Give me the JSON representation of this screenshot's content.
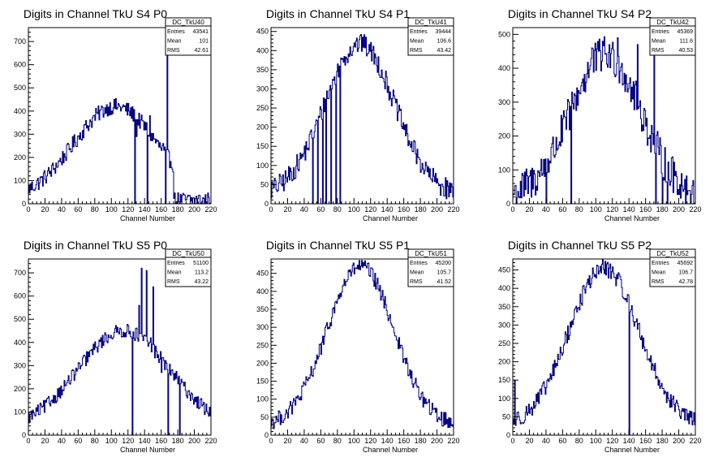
{
  "chart_data": [
    {
      "type": "histogram",
      "title": "Digits in Channel TkU S4 P0",
      "xlabel": "Channel Number",
      "xlim": [
        0,
        220
      ],
      "ylim": [
        0,
        760
      ],
      "yticks": [
        100,
        200,
        300,
        400,
        500,
        600,
        700
      ],
      "stats": {
        "name": "DC_TkU40",
        "rows": [
          [
            "Entries",
            "43541"
          ],
          [
            "Mean",
            "101"
          ],
          [
            "RMS",
            "42.61"
          ]
        ]
      },
      "shape": {
        "amp": 400,
        "center": 105,
        "sigma": 50,
        "floor": 20,
        "cut": 175,
        "noise": 35
      },
      "spikes": [
        [
          167,
          710
        ],
        [
          146,
          380
        ],
        [
          162,
          260
        ],
        [
          130,
          290
        ]
      ],
      "dips": [
        128,
        143,
        165
      ]
    },
    {
      "type": "histogram",
      "title": "Digits in Channel TkU S4 P1",
      "xlabel": "Channel Number",
      "xlim": [
        0,
        220
      ],
      "ylim": [
        0,
        460
      ],
      "yticks": [
        50,
        100,
        150,
        200,
        250,
        300,
        350,
        400,
        450
      ],
      "stats": {
        "name": "DC_TkU41",
        "rows": [
          [
            "Entries",
            "39444"
          ],
          [
            "Mean",
            "106.6"
          ],
          [
            "RMS",
            "43.42"
          ]
        ]
      },
      "shape": {
        "amp": 395,
        "center": 107,
        "sigma": 42,
        "floor": 22,
        "cut": 220,
        "noise": 28
      },
      "spikes": [
        [
          110,
          435
        ],
        [
          100,
          420
        ],
        [
          95,
          410
        ]
      ],
      "dips": [
        50,
        56,
        62,
        66,
        72,
        78,
        83
      ]
    },
    {
      "type": "histogram",
      "title": "Digits in Channel TkU S4 P2",
      "xlabel": "Channel Number",
      "xlim": [
        0,
        220
      ],
      "ylim": [
        0,
        520
      ],
      "yticks": [
        100,
        200,
        300,
        400,
        500
      ],
      "stats": {
        "name": "DC_TkU42",
        "rows": [
          [
            "Entries",
            "45369"
          ],
          [
            "Mean",
            "111.6"
          ],
          [
            "RMS",
            "40.53"
          ]
        ]
      },
      "shape": {
        "amp": 420,
        "center": 112,
        "sigma": 42,
        "floor": 20,
        "cut": 215,
        "noise": 55
      },
      "spikes": [
        [
          126,
          490
        ],
        [
          108,
          480
        ],
        [
          150,
          470
        ],
        [
          95,
          460
        ],
        [
          170,
          440
        ],
        [
          176,
          145
        ]
      ],
      "dips": [
        40,
        70,
        172,
        180,
        186
      ]
    },
    {
      "type": "histogram",
      "title": "Digits in Channel TkU S5 P0",
      "xlabel": "Channel Number",
      "xlim": [
        0,
        220
      ],
      "ylim": [
        0,
        760
      ],
      "yticks": [
        100,
        200,
        300,
        400,
        500,
        600,
        700
      ],
      "stats": {
        "name": "DC_TkU50",
        "rows": [
          [
            "Entries",
            "51100"
          ],
          [
            "Mean",
            "113.2"
          ],
          [
            "RMS",
            "43.22"
          ]
        ]
      },
      "shape": {
        "amp": 420,
        "center": 115,
        "sigma": 55,
        "floor": 30,
        "cut": 220,
        "noise": 30
      },
      "spikes": [
        [
          136,
          720
        ],
        [
          142,
          710
        ],
        [
          150,
          640
        ],
        [
          133,
          560
        ],
        [
          147,
          420
        ],
        [
          160,
          270
        ]
      ],
      "dips": [
        125,
        168,
        182
      ]
    },
    {
      "type": "histogram",
      "title": "Digits in Channel TkU S5 P1",
      "xlabel": "Channel Number",
      "xlim": [
        0,
        220
      ],
      "ylim": [
        0,
        490
      ],
      "yticks": [
        50,
        100,
        150,
        200,
        250,
        300,
        350,
        400,
        450
      ],
      "stats": {
        "name": "DC_TkU51",
        "rows": [
          [
            "Entries",
            "45200"
          ],
          [
            "Mean",
            "105.7"
          ],
          [
            "RMS",
            "41.52"
          ]
        ]
      },
      "shape": {
        "amp": 445,
        "center": 108,
        "sigma": 40,
        "floor": 25,
        "cut": 220,
        "noise": 22
      },
      "spikes": [
        [
          108,
          470
        ],
        [
          115,
          465
        ]
      ],
      "dips": []
    },
    {
      "type": "histogram",
      "title": "Digits in Channel TkU S5 P2",
      "xlabel": "Channel Number",
      "xlim": [
        0,
        220
      ],
      "ylim": [
        0,
        480
      ],
      "yticks": [
        50,
        100,
        150,
        200,
        250,
        300,
        350,
        400,
        450
      ],
      "stats": {
        "name": "DC_TkU52",
        "rows": [
          [
            "Entries",
            "45692"
          ],
          [
            "Mean",
            "106.7"
          ],
          [
            "RMS",
            "42.78"
          ]
        ]
      },
      "shape": {
        "amp": 430,
        "center": 110,
        "sigma": 42,
        "floor": 25,
        "cut": 220,
        "noise": 24
      },
      "spikes": [
        [
          2,
          150
        ],
        [
          105,
          460
        ],
        [
          116,
          455
        ]
      ],
      "dips": [
        140
      ]
    }
  ],
  "colors": {
    "line": "#000080",
    "axis": "#000000",
    "frame": "#000000"
  }
}
